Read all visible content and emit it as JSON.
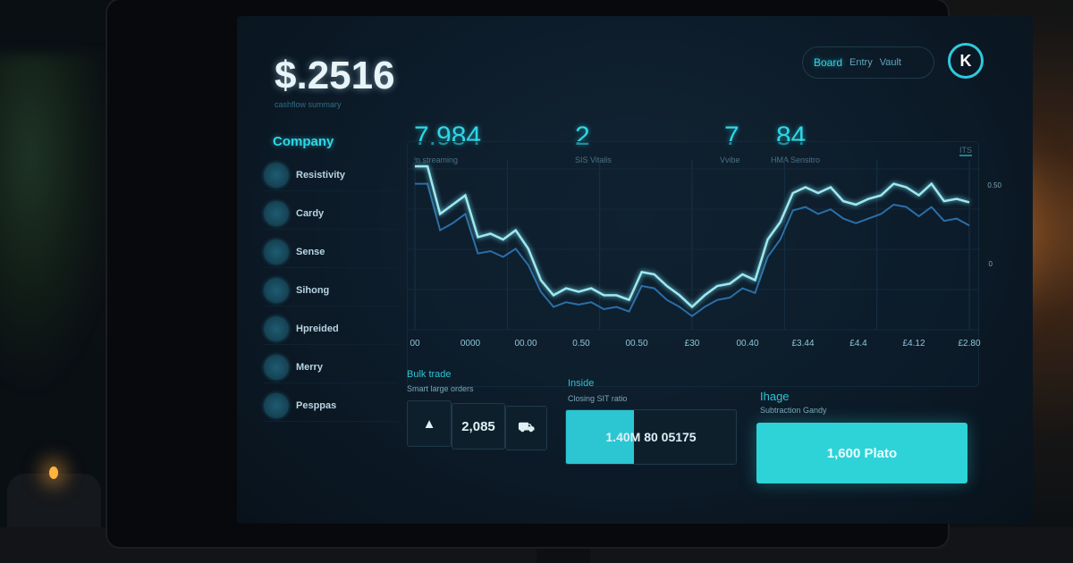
{
  "header": {
    "balance": "$.2516",
    "balance_caption": "cashflow summary"
  },
  "top_pill": {
    "items": [
      "Board",
      "Entry",
      "Vault"
    ],
    "logo": "K"
  },
  "sidebar": {
    "title": "Company",
    "items": [
      {
        "label": "Resistivity",
        "icon": "refresh-icon"
      },
      {
        "label": "Cardy",
        "icon": "circle-icon"
      },
      {
        "label": "Sense",
        "icon": "square-icon"
      },
      {
        "label": "Sihong",
        "icon": "tag-icon"
      },
      {
        "label": "Hpreided",
        "icon": "swirl-icon"
      },
      {
        "label": "Merry",
        "icon": "ring-icon"
      },
      {
        "label": "Pesppas",
        "icon": "dot-icon"
      }
    ]
  },
  "stats": [
    {
      "value": "7.984",
      "label": "in streaming"
    },
    {
      "value": "2",
      "label": "SIS Vitalis"
    },
    {
      "value": "7",
      "label": "Vvibe"
    },
    {
      "value": "84",
      "label": "HMA Sensitro"
    }
  ],
  "chart_corner": "ITS",
  "chart_data": {
    "type": "line",
    "x_labels": [
      "00",
      "0000",
      "00.00",
      "0.50",
      "00.50",
      "£30",
      "00.40",
      "£3.44",
      "£4.4",
      "£4.12",
      "£2.80"
    ],
    "right_labels": [
      "0.50",
      "0"
    ],
    "grid": true,
    "colors": {
      "primary": "#9fe8f0",
      "secondary": "#2a6fa8"
    },
    "series": [
      {
        "values": [
          133,
          133,
          92,
          100,
          108,
          72,
          75,
          70,
          78,
          62,
          35,
          22,
          28,
          25,
          28,
          22,
          22,
          18,
          42,
          40,
          30,
          22,
          12,
          22,
          30,
          32,
          40,
          35,
          70,
          85,
          110,
          115,
          110,
          115,
          103,
          100,
          105,
          108,
          118,
          115,
          108,
          118,
          103,
          105,
          102
        ]
      },
      {
        "values": [
          118,
          118,
          78,
          84,
          92,
          58,
          60,
          55,
          62,
          48,
          25,
          12,
          16,
          14,
          16,
          10,
          12,
          8,
          30,
          28,
          18,
          12,
          4,
          12,
          18,
          20,
          28,
          24,
          55,
          70,
          95,
          98,
          92,
          96,
          88,
          84,
          88,
          92,
          100,
          98,
          90,
          98,
          86,
          88,
          82
        ]
      }
    ]
  },
  "bottom": {
    "left": {
      "title": "Bulk trade",
      "caption": "Smart large orders",
      "value": "2,085"
    },
    "mid": {
      "title": "Inside",
      "caption": "Closing SIT ratio",
      "value": "1.40M 80 05175",
      "fill_percent": 40
    },
    "right": {
      "title": "Ihage",
      "caption": "Subtraction Gandy",
      "button": "1,600 Plato"
    }
  }
}
